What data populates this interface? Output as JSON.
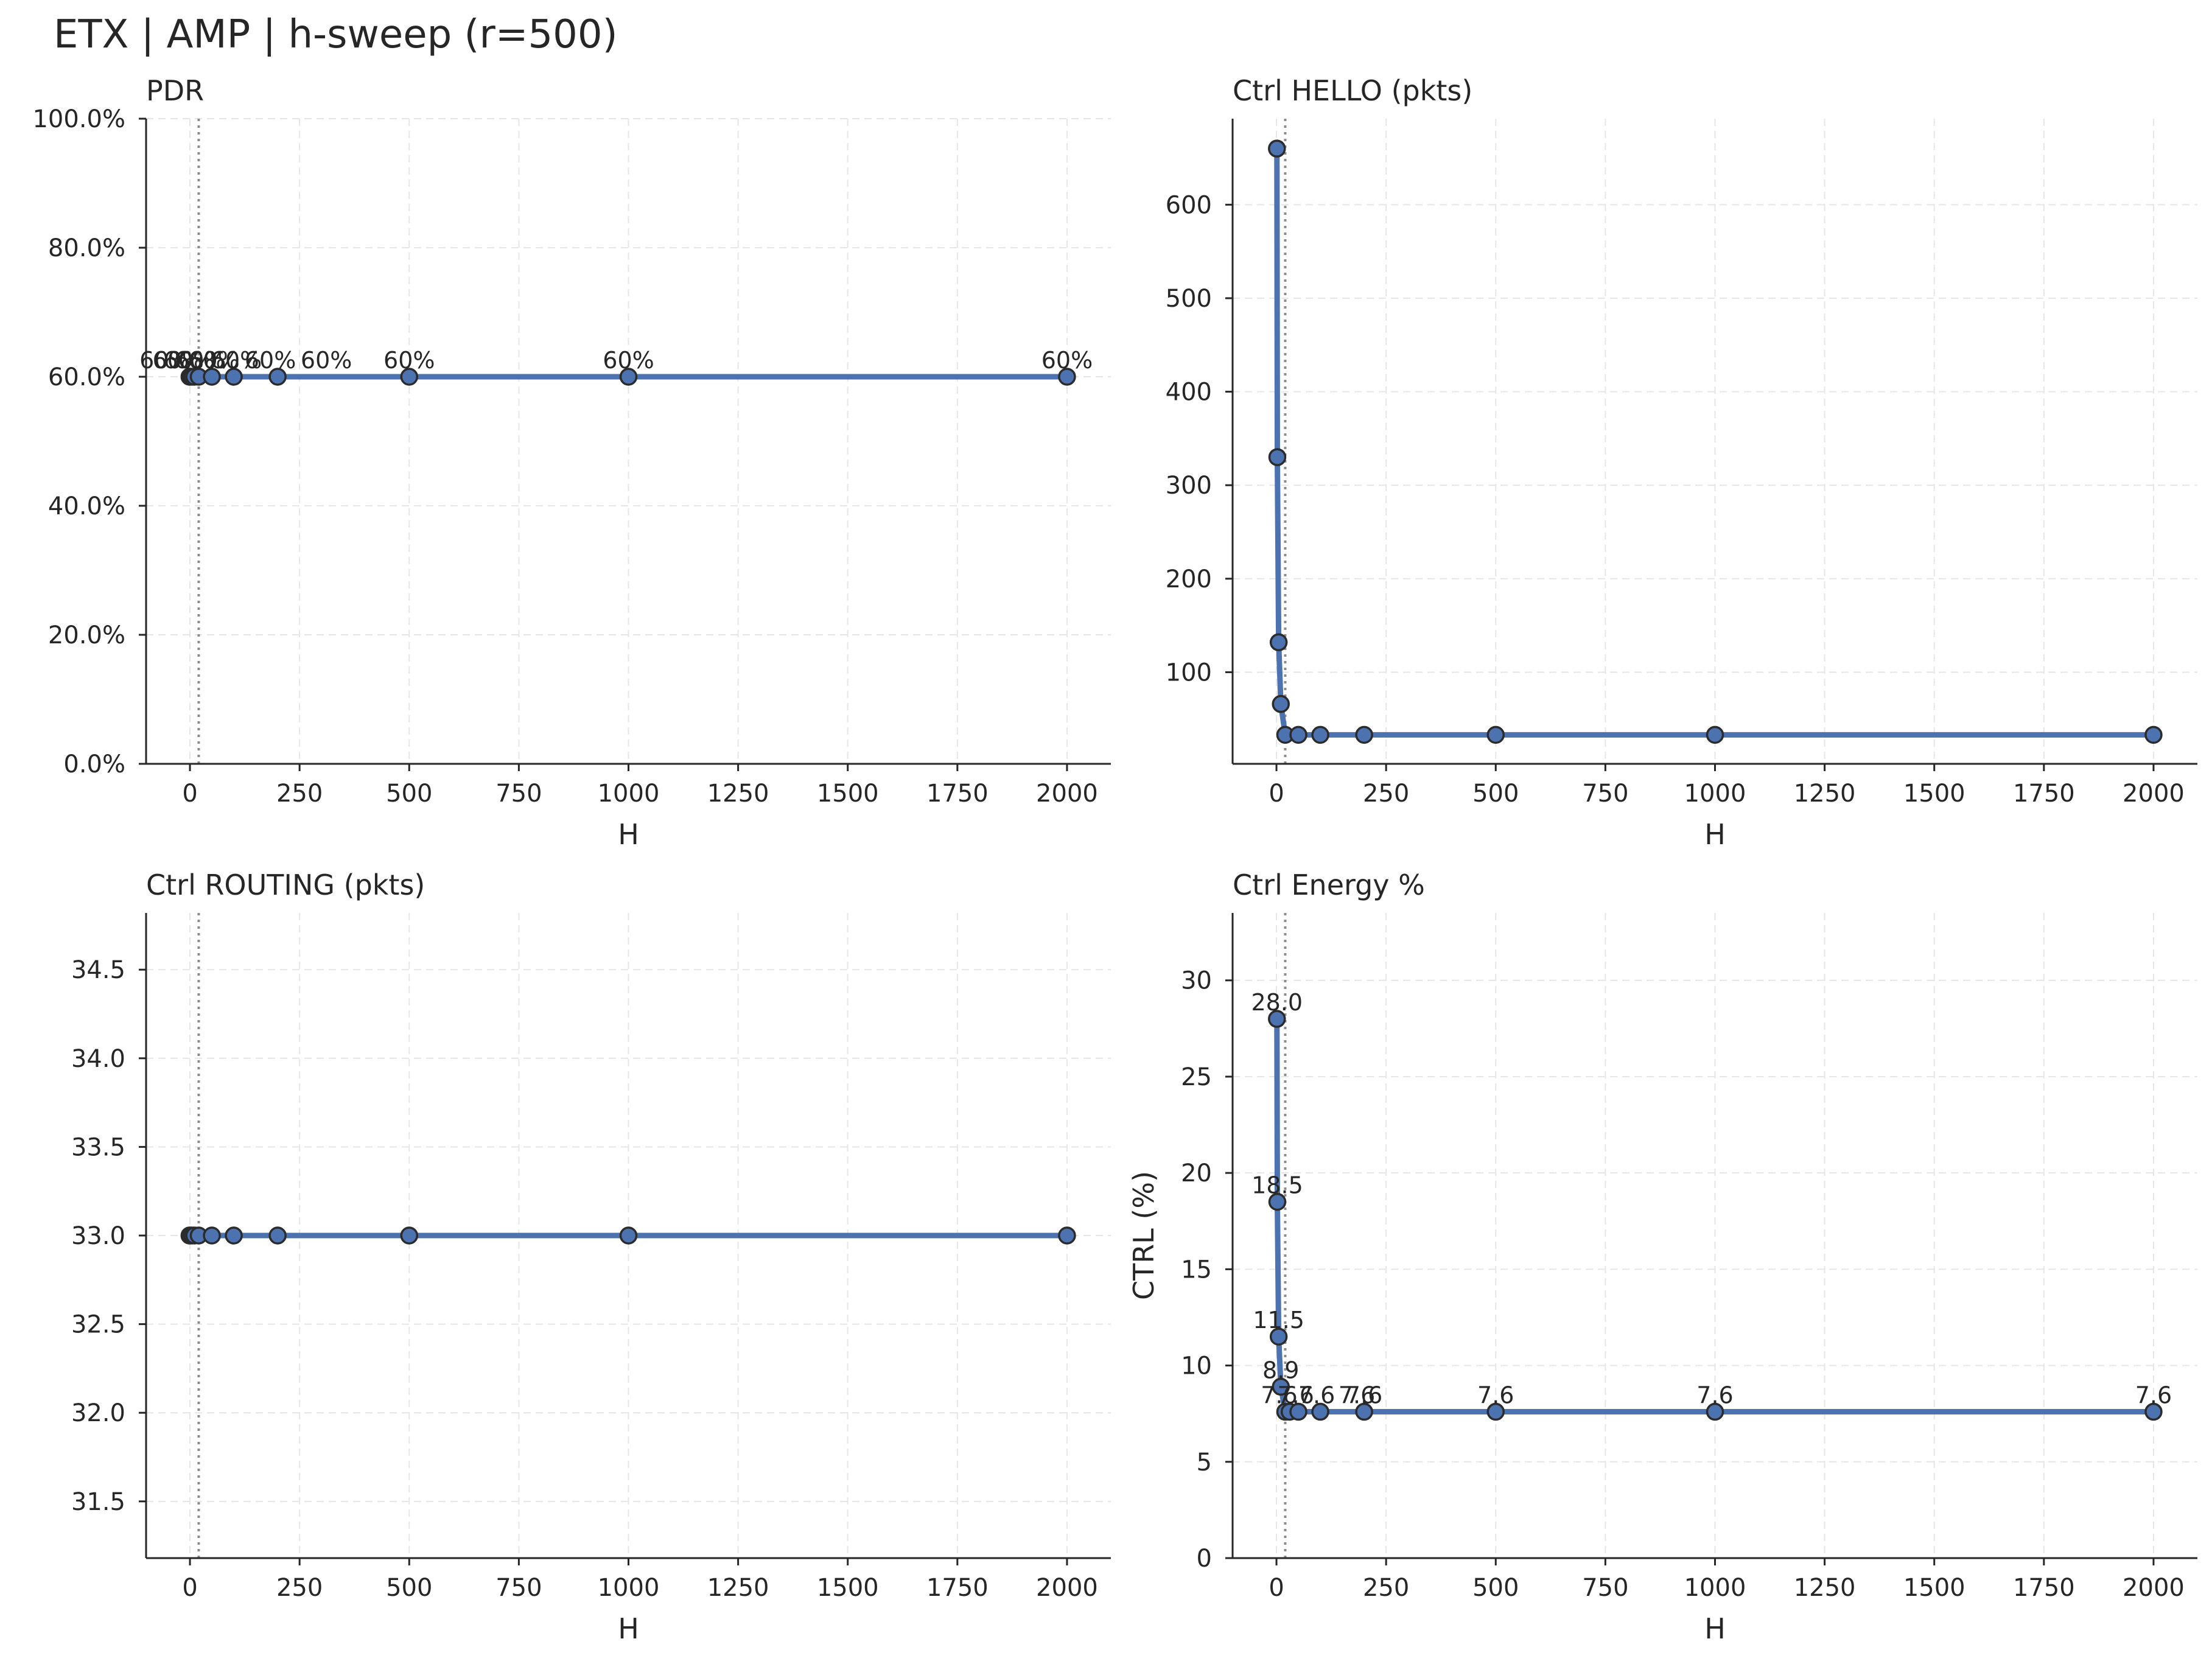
{
  "figure": {
    "title": "ETX | AMP | h-sweep (r=500)"
  },
  "colors": {
    "line": "#4c72b0",
    "marker_edge": "#2b2b2b",
    "grid": "#e6e6e6",
    "axis": "#262626",
    "vline": "#8c8c8c"
  },
  "chart_data": [
    {
      "type": "line",
      "title": "PDR",
      "xlabel": "H",
      "ylabel": "",
      "xlim": [
        -100,
        2100
      ],
      "ylim": [
        0,
        100
      ],
      "xticks": [
        0,
        250,
        500,
        750,
        1000,
        1250,
        1500,
        1750,
        2000
      ],
      "xtick_labels": [
        "0",
        "250",
        "500",
        "750",
        "1000",
        "1250",
        "1500",
        "1750",
        "2000"
      ],
      "yticks": [
        0,
        20,
        40,
        60,
        80,
        100
      ],
      "ytick_labels": [
        "0.0%",
        "20.0%",
        "40.0%",
        "60.0%",
        "80.0%",
        "100.0%"
      ],
      "vline_x": 20,
      "grid": true,
      "series": [
        {
          "x": [
            -1,
            1,
            5,
            10,
            20,
            50,
            100,
            200,
            500,
            1000,
            2000
          ],
          "y": [
            60,
            60,
            60,
            60,
            60,
            60,
            60,
            60,
            60,
            60,
            60
          ]
        }
      ],
      "point_labels": [
        "60%",
        "60%",
        "60%",
        "60%",
        "60%",
        "60%",
        "60%",
        "60%",
        "60%",
        "60%",
        "60%"
      ],
      "label_dx": [
        -40,
        -20,
        -5,
        10,
        25,
        40,
        60,
        80,
        0,
        0,
        0
      ]
    },
    {
      "type": "line",
      "title": "Ctrl HELLO (pkts)",
      "xlabel": "H",
      "ylabel": "",
      "xlim": [
        -100,
        2100
      ],
      "ylim": [
        2,
        692
      ],
      "xticks": [
        0,
        250,
        500,
        750,
        1000,
        1250,
        1500,
        1750,
        2000
      ],
      "xtick_labels": [
        "0",
        "250",
        "500",
        "750",
        "1000",
        "1250",
        "1500",
        "1750",
        "2000"
      ],
      "yticks": [
        100,
        200,
        300,
        400,
        500,
        600
      ],
      "ytick_labels": [
        "100",
        "200",
        "300",
        "400",
        "500",
        "600"
      ],
      "vline_x": 20,
      "grid": true,
      "series": [
        {
          "x": [
            1,
            2,
            5,
            10,
            20,
            50,
            100,
            200,
            500,
            1000,
            2000
          ],
          "y": [
            660,
            330,
            132,
            66,
            33,
            33,
            33,
            33,
            33,
            33,
            33
          ]
        }
      ]
    },
    {
      "type": "line",
      "title": "Ctrl ROUTING (pkts)",
      "xlabel": "H",
      "ylabel": "",
      "xlim": [
        -100,
        2100
      ],
      "ylim": [
        31.18,
        34.82
      ],
      "xticks": [
        0,
        250,
        500,
        750,
        1000,
        1250,
        1500,
        1750,
        2000
      ],
      "xtick_labels": [
        "0",
        "250",
        "500",
        "750",
        "1000",
        "1250",
        "1500",
        "1750",
        "2000"
      ],
      "yticks": [
        31.5,
        32.0,
        32.5,
        33.0,
        33.5,
        34.0,
        34.5
      ],
      "ytick_labels": [
        "31.5",
        "32.0",
        "32.5",
        "33.0",
        "33.5",
        "34.0",
        "34.5"
      ],
      "vline_x": 20,
      "grid": true,
      "series": [
        {
          "x": [
            -1,
            1,
            5,
            10,
            20,
            50,
            100,
            200,
            500,
            1000,
            2000
          ],
          "y": [
            33,
            33,
            33,
            33,
            33,
            33,
            33,
            33,
            33,
            33,
            33
          ]
        }
      ]
    },
    {
      "type": "line",
      "title": "Ctrl Energy %",
      "xlabel": "H",
      "ylabel": "CTRL (%)",
      "xlim": [
        -100,
        2100
      ],
      "ylim": [
        0,
        33.5
      ],
      "xticks": [
        0,
        250,
        500,
        750,
        1000,
        1250,
        1500,
        1750,
        2000
      ],
      "xtick_labels": [
        "0",
        "250",
        "500",
        "750",
        "1000",
        "1250",
        "1500",
        "1750",
        "2000"
      ],
      "yticks": [
        0,
        5,
        10,
        15,
        20,
        25,
        30
      ],
      "ytick_labels": [
        "0",
        "5",
        "10",
        "15",
        "20",
        "25",
        "30"
      ],
      "vline_x": 20,
      "grid": true,
      "series": [
        {
          "x": [
            1,
            2,
            5,
            10,
            20,
            30,
            50,
            100,
            200,
            500,
            1000,
            2000
          ],
          "y": [
            28.0,
            18.5,
            11.5,
            8.9,
            7.6,
            7.6,
            7.6,
            7.6,
            7.6,
            7.6,
            7.6,
            7.6
          ]
        }
      ],
      "point_labels": [
        "28.0",
        "18.5",
        "11.5",
        "8.9",
        "7.6",
        "7.6",
        "7.6",
        "7.6",
        "7.6",
        "7.6",
        "7.6",
        "7.6"
      ],
      "label_dx": [
        0,
        0,
        0,
        0,
        -10,
        10,
        30,
        60,
        0,
        0,
        0,
        0
      ]
    }
  ]
}
